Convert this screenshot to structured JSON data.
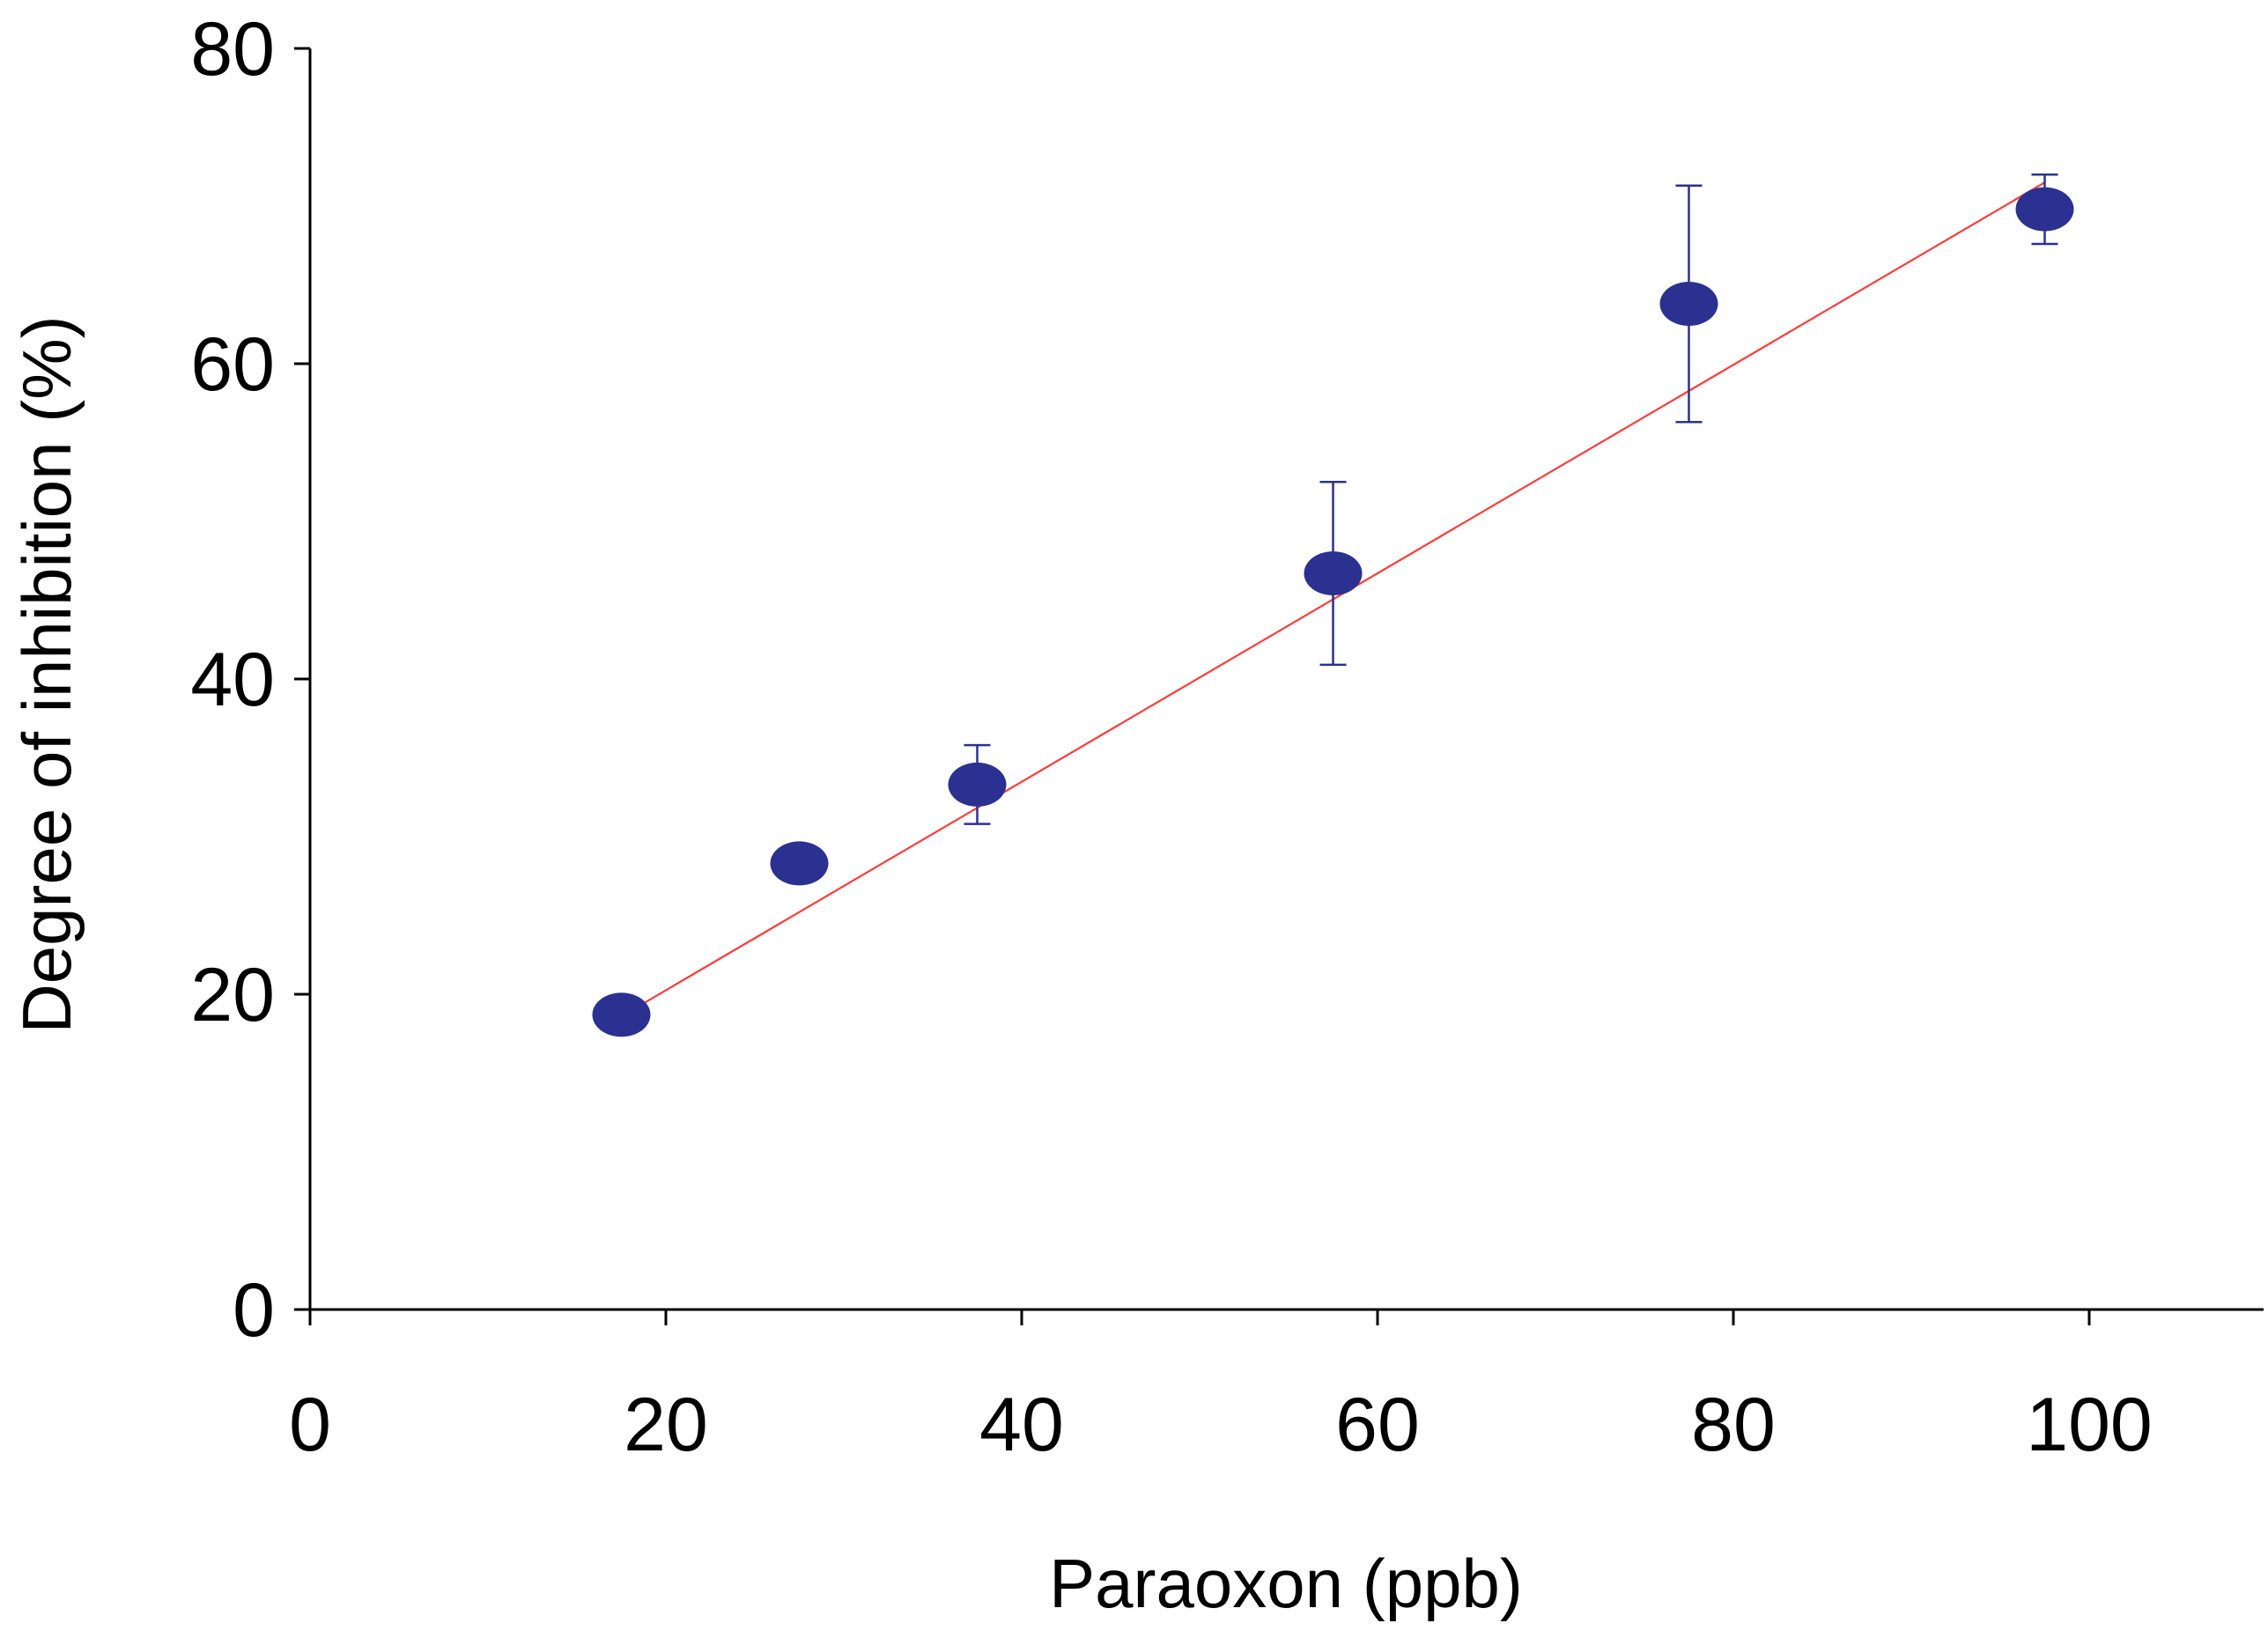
{
  "chart_data": {
    "type": "scatter",
    "title": "",
    "xlabel": "Paraoxon (ppb)",
    "ylabel": "Degree of inhibition (%)",
    "xlim": [
      0,
      110
    ],
    "ylim": [
      0,
      80
    ],
    "xticks": [
      0,
      20,
      40,
      60,
      80,
      100
    ],
    "yticks": [
      0,
      20,
      40,
      60,
      80
    ],
    "grid": false,
    "legend": "none",
    "series": [
      {
        "x": [
          17.5,
          27.5,
          37.5,
          57.5,
          77.5,
          97.5
        ],
        "y": [
          18.7,
          28.3,
          33.3,
          46.7,
          63.8,
          69.8
        ],
        "yerr": [
          0,
          0,
          2.5,
          5.8,
          7.5,
          2.2
        ],
        "color": "#2b3190"
      }
    ],
    "fit_line": {
      "x": [
        17.5,
        97.5
      ],
      "y": [
        18.6,
        71.5
      ],
      "color": "#ff3b3b"
    }
  }
}
